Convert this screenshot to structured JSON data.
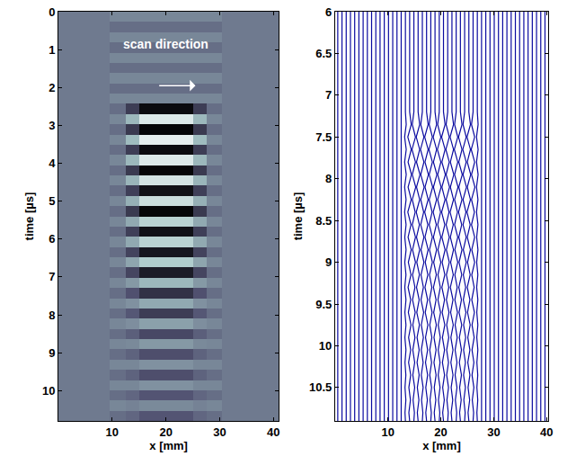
{
  "chart_data": [
    {
      "type": "heatmap",
      "xlabel": "x [mm]",
      "ylabel": "time [µs]",
      "annotation": "scan direction",
      "xlim": [
        0,
        41
      ],
      "ylim": [
        0,
        10.8
      ],
      "xticks": [
        10,
        20,
        30,
        40
      ],
      "yticks": [
        0,
        1,
        2,
        3,
        4,
        5,
        6,
        7,
        8,
        9,
        10
      ],
      "clim": [
        -1,
        1
      ],
      "x_edges": [
        0,
        9.5,
        12.5,
        15,
        25,
        27.5,
        30.5,
        41
      ],
      "t_edges": [
        0,
        0.27,
        0.54,
        0.81,
        1.08,
        1.35,
        1.62,
        1.89,
        2.16,
        2.43,
        2.7,
        2.97,
        3.24,
        3.51,
        3.78,
        4.05,
        4.32,
        4.59,
        4.86,
        5.13,
        5.4,
        5.67,
        5.94,
        6.21,
        6.48,
        6.75,
        7.02,
        7.29,
        7.56,
        7.83,
        8.1,
        8.37,
        8.64,
        8.91,
        9.18,
        9.45,
        9.72,
        9.99,
        10.26,
        10.53,
        10.8
      ],
      "z": [
        [
          0,
          0.08,
          0.08,
          0.08,
          0.08,
          0.08,
          0
        ],
        [
          0,
          -0.08,
          -0.08,
          -0.08,
          -0.08,
          -0.08,
          0
        ],
        [
          0,
          0.08,
          0.08,
          0.08,
          0.08,
          0.08,
          0
        ],
        [
          0,
          -0.08,
          -0.08,
          -0.08,
          -0.08,
          -0.08,
          0
        ],
        [
          0,
          0.08,
          0.08,
          0.08,
          0.08,
          0.08,
          0
        ],
        [
          0,
          -0.08,
          -0.08,
          -0.08,
          -0.08,
          -0.08,
          0
        ],
        [
          0,
          0.08,
          0.08,
          0.08,
          0.08,
          0.08,
          0
        ],
        [
          0,
          -0.08,
          -0.08,
          -0.08,
          -0.08,
          -0.08,
          0
        ],
        [
          0,
          0.08,
          0.08,
          0.08,
          0.08,
          0.08,
          0
        ],
        [
          0,
          -0.08,
          -0.45,
          -0.9,
          -0.45,
          -0.08,
          0
        ],
        [
          0,
          0.08,
          0.4,
          0.8,
          0.4,
          0.08,
          0
        ],
        [
          0,
          -0.08,
          -0.48,
          -0.95,
          -0.48,
          -0.08,
          0
        ],
        [
          0,
          0.08,
          0.43,
          0.85,
          0.43,
          0.08,
          0
        ],
        [
          0,
          -0.08,
          -0.45,
          -0.9,
          -0.45,
          -0.08,
          0
        ],
        [
          0,
          0.08,
          0.4,
          0.8,
          0.4,
          0.08,
          0
        ],
        [
          0,
          -0.08,
          -0.48,
          -0.95,
          -0.48,
          -0.08,
          0
        ],
        [
          0,
          0.08,
          0.38,
          0.75,
          0.38,
          0.08,
          0
        ],
        [
          0,
          -0.08,
          -0.43,
          -0.85,
          -0.43,
          -0.08,
          0
        ],
        [
          0,
          0.08,
          0.35,
          0.7,
          0.35,
          0.08,
          0
        ],
        [
          0,
          -0.08,
          -0.48,
          -0.95,
          -0.48,
          -0.08,
          0
        ],
        [
          0,
          0.08,
          0.3,
          0.6,
          0.3,
          0.08,
          0
        ],
        [
          0,
          -0.08,
          -0.43,
          -0.85,
          -0.43,
          -0.08,
          0
        ],
        [
          0,
          0.08,
          0.3,
          0.6,
          0.3,
          0.08,
          0
        ],
        [
          0,
          -0.08,
          -0.4,
          -0.8,
          -0.4,
          -0.08,
          0
        ],
        [
          0,
          0.08,
          0.28,
          0.55,
          0.28,
          0.08,
          0
        ],
        [
          0,
          -0.08,
          -0.38,
          -0.75,
          -0.38,
          -0.08,
          0
        ],
        [
          0,
          0.08,
          0.2,
          0.4,
          0.2,
          0.08,
          0
        ],
        [
          0,
          -0.08,
          -0.28,
          -0.55,
          -0.28,
          -0.08,
          0
        ],
        [
          0,
          0.08,
          0.15,
          0.3,
          0.15,
          0.08,
          0
        ],
        [
          0,
          -0.08,
          -0.23,
          -0.45,
          -0.23,
          -0.08,
          0
        ],
        [
          0,
          0.08,
          0.13,
          0.25,
          0.13,
          0.08,
          0
        ],
        [
          0,
          -0.08,
          -0.18,
          -0.35,
          -0.18,
          -0.08,
          0
        ],
        [
          0,
          0.08,
          0.1,
          0.2,
          0.1,
          0.08,
          0
        ],
        [
          0,
          -0.08,
          -0.15,
          -0.3,
          -0.15,
          -0.08,
          0
        ],
        [
          0,
          0.08,
          0.08,
          0.15,
          0.08,
          0.08,
          0
        ],
        [
          0,
          -0.08,
          -0.15,
          -0.3,
          -0.15,
          -0.08,
          0
        ],
        [
          0,
          0.08,
          0.08,
          0.15,
          0.08,
          0.08,
          0
        ],
        [
          0,
          -0.08,
          -0.13,
          -0.25,
          -0.13,
          -0.08,
          0
        ],
        [
          0,
          0.08,
          0.05,
          0.1,
          0.05,
          0.08,
          0
        ],
        [
          0,
          -0.08,
          -0.13,
          -0.25,
          -0.13,
          -0.08,
          0
        ]
      ]
    },
    {
      "type": "wiggle",
      "xlabel": "x [mm]",
      "ylabel": "time [µs]",
      "xlim": [
        0,
        40.3
      ],
      "ylim": [
        6,
        10.9
      ],
      "xticks": [
        10,
        20,
        30,
        40
      ],
      "yticks": [
        6,
        6.5,
        7,
        7.5,
        8,
        8.5,
        9,
        9.5,
        10,
        10.5
      ],
      "color": "#0a0aa0",
      "t": [
        6,
        7.2,
        7.35,
        7.5,
        7.65,
        7.8,
        7.95,
        8.1,
        8.25,
        8.4,
        8.55,
        8.7,
        8.85,
        9.0,
        9.15,
        9.3,
        9.45,
        9.6,
        9.75,
        9.9,
        10.05,
        10.2,
        10.35,
        10.5,
        10.65,
        10.8,
        10.9
      ],
      "baselines": [
        0.5,
        1.3,
        2.1,
        2.9,
        3.7,
        4.5,
        5.3,
        6.1,
        6.9,
        7.7,
        8.5,
        9.3,
        10.1,
        10.9,
        11.7,
        12.5,
        13.3,
        14.1,
        14.9,
        15.7,
        16.5,
        17.3,
        18.1,
        18.9,
        19.7,
        20.5,
        21.3,
        22.1,
        22.9,
        23.7,
        24.5,
        25.3,
        26.1,
        26.9,
        27.7,
        28.5,
        29.3,
        30.1,
        30.9,
        31.7,
        32.5,
        33.3,
        34.1,
        34.9,
        35.7,
        36.5,
        37.3,
        38.1,
        38.9,
        39.7
      ],
      "wiggles": [
        {
          "x0": 13.3,
          "values": [
            0,
            0,
            0.15,
            -0.15,
            0.15,
            -0.15,
            0.15,
            -0.15,
            0.12,
            -0.15,
            0.12,
            -0.12,
            0.12,
            -0.12,
            0.1,
            -0.12,
            0.1,
            -0.1,
            0.1,
            -0.1,
            0.1,
            -0.08,
            0.08,
            -0.08,
            0.08,
            -0.08,
            0
          ]
        },
        {
          "x0": 14.1,
          "values": [
            0,
            0,
            0.3,
            -0.35,
            0.3,
            -0.3,
            0.35,
            -0.3,
            0.3,
            -0.35,
            0.25,
            -0.3,
            0.3,
            -0.25,
            0.25,
            -0.3,
            0.2,
            -0.25,
            0.25,
            -0.2,
            0.2,
            -0.2,
            0.2,
            -0.15,
            0.15,
            -0.15,
            0
          ]
        },
        {
          "x0": 14.9,
          "values": [
            0,
            0,
            -0.3,
            0.3,
            -0.35,
            0.3,
            -0.3,
            0.35,
            -0.3,
            0.25,
            -0.3,
            0.3,
            -0.25,
            0.3,
            -0.25,
            0.2,
            -0.25,
            0.25,
            -0.2,
            0.2,
            -0.2,
            0.15,
            -0.2,
            0.15,
            -0.15,
            0.1,
            0
          ]
        },
        {
          "x0": 15.7,
          "values": [
            0,
            0,
            0.3,
            -0.35,
            0.3,
            -0.3,
            0.35,
            -0.3,
            0.3,
            -0.35,
            0.25,
            -0.3,
            0.3,
            -0.25,
            0.25,
            -0.3,
            0.2,
            -0.25,
            0.25,
            -0.2,
            0.2,
            -0.2,
            0.2,
            -0.15,
            0.15,
            -0.15,
            0
          ]
        },
        {
          "x0": 16.5,
          "values": [
            0,
            0,
            -0.3,
            0.3,
            -0.35,
            0.3,
            -0.3,
            0.35,
            -0.3,
            0.25,
            -0.3,
            0.3,
            -0.25,
            0.3,
            -0.25,
            0.2,
            -0.25,
            0.25,
            -0.2,
            0.2,
            -0.2,
            0.15,
            -0.2,
            0.15,
            -0.15,
            0.1,
            0
          ]
        },
        {
          "x0": 17.3,
          "values": [
            0,
            0,
            0.3,
            -0.35,
            0.3,
            -0.3,
            0.35,
            -0.3,
            0.3,
            -0.35,
            0.25,
            -0.3,
            0.3,
            -0.25,
            0.25,
            -0.3,
            0.2,
            -0.25,
            0.25,
            -0.2,
            0.2,
            -0.2,
            0.2,
            -0.15,
            0.15,
            -0.15,
            0
          ]
        },
        {
          "x0": 18.1,
          "values": [
            0,
            0,
            -0.3,
            0.3,
            -0.35,
            0.3,
            -0.3,
            0.35,
            -0.3,
            0.25,
            -0.3,
            0.3,
            -0.25,
            0.3,
            -0.25,
            0.2,
            -0.25,
            0.25,
            -0.2,
            0.2,
            -0.2,
            0.15,
            -0.2,
            0.15,
            -0.15,
            0.1,
            0
          ]
        },
        {
          "x0": 18.9,
          "values": [
            0,
            0,
            0.3,
            -0.35,
            0.3,
            -0.3,
            0.35,
            -0.3,
            0.3,
            -0.35,
            0.25,
            -0.3,
            0.3,
            -0.25,
            0.25,
            -0.3,
            0.2,
            -0.25,
            0.25,
            -0.2,
            0.2,
            -0.2,
            0.2,
            -0.15,
            0.15,
            -0.15,
            0
          ]
        },
        {
          "x0": 19.7,
          "values": [
            0,
            0,
            -0.3,
            0.3,
            -0.35,
            0.3,
            -0.3,
            0.35,
            -0.3,
            0.25,
            -0.3,
            0.3,
            -0.25,
            0.3,
            -0.25,
            0.2,
            -0.25,
            0.25,
            -0.2,
            0.2,
            -0.2,
            0.15,
            -0.2,
            0.15,
            -0.15,
            0.1,
            0
          ]
        },
        {
          "x0": 20.5,
          "values": [
            0,
            0,
            0.3,
            -0.35,
            0.3,
            -0.3,
            0.35,
            -0.3,
            0.3,
            -0.35,
            0.25,
            -0.3,
            0.3,
            -0.25,
            0.25,
            -0.3,
            0.2,
            -0.25,
            0.25,
            -0.2,
            0.2,
            -0.2,
            0.2,
            -0.15,
            0.15,
            -0.15,
            0
          ]
        },
        {
          "x0": 21.3,
          "values": [
            0,
            0,
            -0.3,
            0.3,
            -0.35,
            0.3,
            -0.3,
            0.35,
            -0.3,
            0.25,
            -0.3,
            0.3,
            -0.25,
            0.3,
            -0.25,
            0.2,
            -0.25,
            0.25,
            -0.2,
            0.2,
            -0.2,
            0.15,
            -0.2,
            0.15,
            -0.15,
            0.1,
            0
          ]
        },
        {
          "x0": 22.1,
          "values": [
            0,
            0,
            0.3,
            -0.35,
            0.3,
            -0.3,
            0.35,
            -0.3,
            0.3,
            -0.35,
            0.25,
            -0.3,
            0.3,
            -0.25,
            0.25,
            -0.3,
            0.2,
            -0.25,
            0.25,
            -0.2,
            0.2,
            -0.2,
            0.2,
            -0.15,
            0.15,
            -0.15,
            0
          ]
        },
        {
          "x0": 22.9,
          "values": [
            0,
            0,
            -0.3,
            0.3,
            -0.35,
            0.3,
            -0.3,
            0.35,
            -0.3,
            0.25,
            -0.3,
            0.3,
            -0.25,
            0.3,
            -0.25,
            0.2,
            -0.25,
            0.25,
            -0.2,
            0.2,
            -0.2,
            0.15,
            -0.2,
            0.15,
            -0.15,
            0.1,
            0
          ]
        },
        {
          "x0": 23.7,
          "values": [
            0,
            0,
            0.3,
            -0.35,
            0.3,
            -0.3,
            0.35,
            -0.3,
            0.3,
            -0.35,
            0.25,
            -0.3,
            0.3,
            -0.25,
            0.25,
            -0.3,
            0.2,
            -0.25,
            0.25,
            -0.2,
            0.2,
            -0.2,
            0.2,
            -0.15,
            0.15,
            -0.15,
            0
          ]
        },
        {
          "x0": 24.5,
          "values": [
            0,
            0,
            -0.3,
            0.3,
            -0.35,
            0.3,
            -0.3,
            0.35,
            -0.3,
            0.25,
            -0.3,
            0.3,
            -0.25,
            0.3,
            -0.25,
            0.2,
            -0.25,
            0.25,
            -0.2,
            0.2,
            -0.2,
            0.15,
            -0.2,
            0.15,
            -0.15,
            0.1,
            0
          ]
        },
        {
          "x0": 25.3,
          "values": [
            0,
            0,
            0.3,
            -0.35,
            0.3,
            -0.3,
            0.35,
            -0.3,
            0.3,
            -0.35,
            0.25,
            -0.3,
            0.3,
            -0.25,
            0.25,
            -0.3,
            0.2,
            -0.25,
            0.25,
            -0.2,
            0.2,
            -0.2,
            0.2,
            -0.15,
            0.15,
            -0.15,
            0
          ]
        },
        {
          "x0": 26.1,
          "values": [
            0,
            0,
            -0.3,
            0.3,
            -0.35,
            0.3,
            -0.3,
            0.35,
            -0.3,
            0.25,
            -0.3,
            0.3,
            -0.25,
            0.3,
            -0.25,
            0.2,
            -0.25,
            0.25,
            -0.2,
            0.2,
            -0.2,
            0.15,
            -0.2,
            0.15,
            -0.15,
            0.1,
            0
          ]
        },
        {
          "x0": 26.9,
          "values": [
            0,
            0,
            0.15,
            -0.15,
            0.15,
            -0.15,
            0.15,
            -0.15,
            0.12,
            -0.15,
            0.12,
            -0.12,
            0.12,
            -0.12,
            0.1,
            -0.12,
            0.1,
            -0.1,
            0.1,
            -0.1,
            0.1,
            -0.08,
            0.08,
            -0.08,
            0.08,
            -0.08,
            0
          ]
        }
      ]
    }
  ]
}
